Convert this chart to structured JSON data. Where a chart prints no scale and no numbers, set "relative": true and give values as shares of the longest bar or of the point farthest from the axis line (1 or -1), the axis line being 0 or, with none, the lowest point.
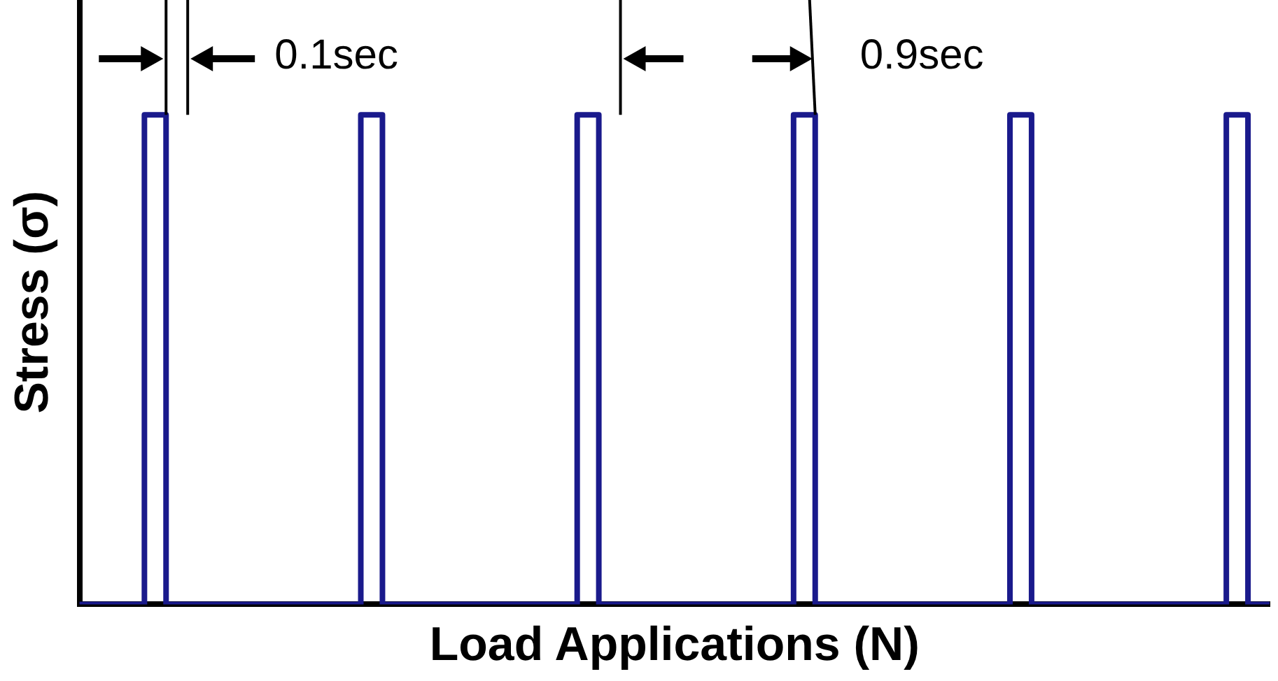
{
  "chart_data": {
    "type": "step",
    "xlabel": "Load Applications (N)",
    "ylabel": "Stress (σ)",
    "relative": true,
    "color": "#1a1a8c",
    "grid": false,
    "legend": false,
    "tick_labels": false,
    "marker": "none",
    "categories": [
      null,
      null,
      null,
      null,
      null,
      null,
      null,
      null,
      null,
      null,
      null,
      null,
      null,
      null,
      null,
      null,
      null,
      null,
      null,
      null,
      null,
      null,
      null,
      null,
      null,
      null,
      null,
      null,
      null,
      null,
      null,
      null,
      null,
      null,
      null,
      null,
      null,
      null,
      null,
      null,
      null,
      null,
      null,
      null,
      null,
      null,
      null,
      null,
      null,
      null,
      null,
      null,
      null,
      null,
      null,
      null
    ],
    "values": [
      0,
      0,
      0,
      0,
      1,
      0,
      0,
      0,
      0,
      0,
      0,
      0,
      0,
      0,
      1,
      0,
      0,
      0,
      0,
      0,
      0,
      0,
      0,
      0,
      1,
      0,
      0,
      0,
      0,
      0,
      0,
      0,
      0,
      0,
      1,
      0,
      0,
      0,
      0,
      0,
      0,
      0,
      0,
      0,
      1,
      0,
      0,
      0,
      0,
      0,
      0,
      0,
      0,
      0,
      1,
      0
    ],
    "annotations": [
      "0.1sec",
      "0.9sec"
    ]
  }
}
